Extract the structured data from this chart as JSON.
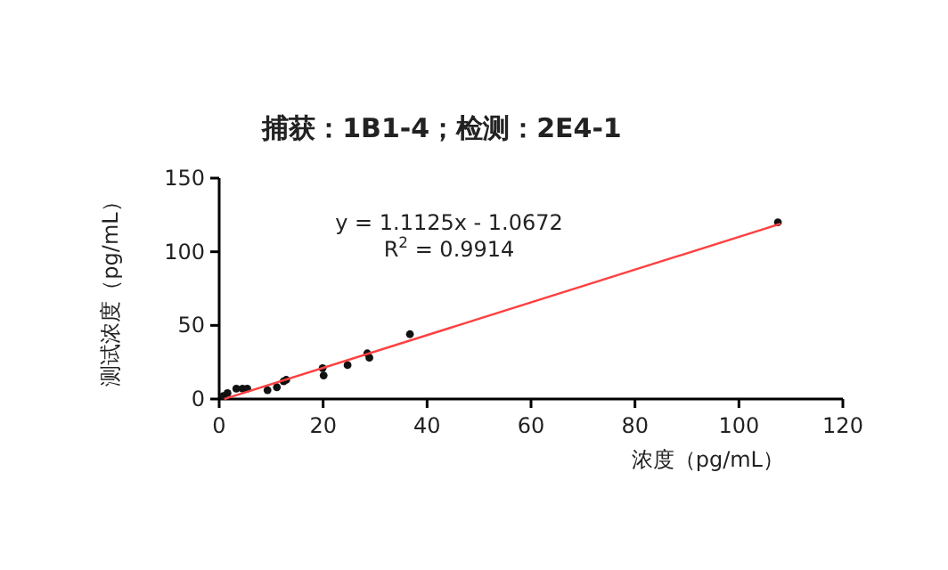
{
  "chart_data": {
    "type": "scatter",
    "title": "捕获：1B1-4；检测：2E4-1",
    "xlabel": "浓度（pg/mL）",
    "ylabel": "测试浓度（pg/mL）",
    "annotations": [
      "y = 1.1125x - 1.0672",
      "R$^{2}$ = 0.9914"
    ],
    "xlim": [
      0,
      120
    ],
    "xticks": [
      0,
      20,
      40,
      60,
      80,
      100,
      120
    ],
    "ylim": [
      0,
      150
    ],
    "yticks": [
      0,
      50,
      100,
      150
    ],
    "grid": false,
    "series": [
      {
        "marker": "circle",
        "color": "#111111",
        "x": [
          0.8,
          1.6,
          3.3,
          4.5,
          5.4,
          9.3,
          11.1,
          12.4,
          12.9,
          19.9,
          20.1,
          24.7,
          28.5,
          28.9,
          36.7,
          107.5
        ],
        "values": [
          2,
          4,
          7,
          7,
          7,
          6,
          8,
          12,
          13,
          21,
          16,
          23,
          31,
          28,
          44,
          120
        ]
      },
      {
        "type": "line",
        "color": "#ff4040",
        "x": [
          1,
          108
        ],
        "values": [
          0,
          119
        ]
      }
    ]
  }
}
